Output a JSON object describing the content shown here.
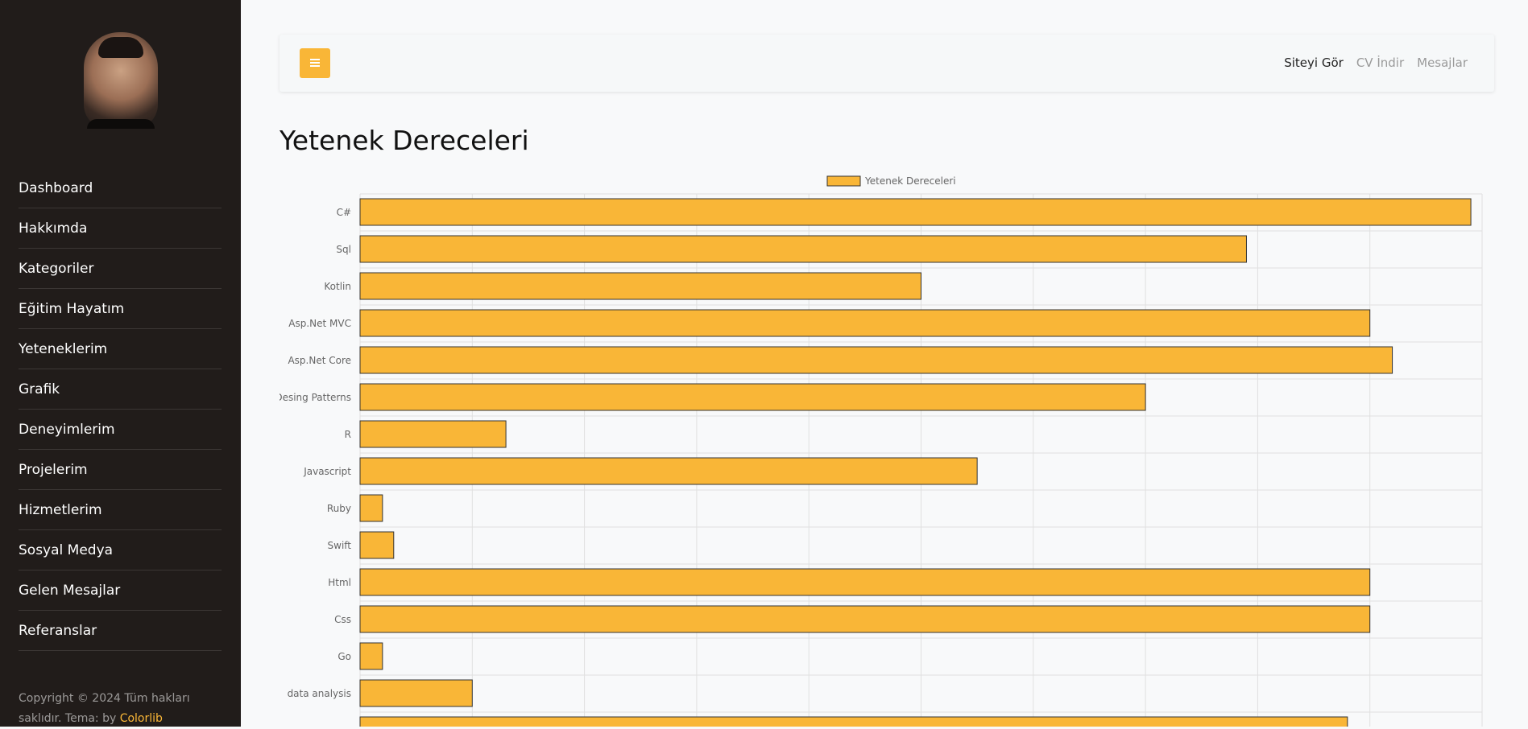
{
  "sidebar": {
    "avatar_alt": "Profil fotoğrafı",
    "items": [
      {
        "label": "Dashboard"
      },
      {
        "label": "Hakkımda"
      },
      {
        "label": "Kategoriler"
      },
      {
        "label": "Eğitim Hayatım"
      },
      {
        "label": "Yeteneklerim"
      },
      {
        "label": "Grafik"
      },
      {
        "label": "Deneyimlerim"
      },
      {
        "label": "Projelerim"
      },
      {
        "label": "Hizmetlerim"
      },
      {
        "label": "Sosyal Medya"
      },
      {
        "label": "Gelen Mesajlar"
      },
      {
        "label": "Referanslar"
      }
    ],
    "copyright_text": "Copyright © 2024 Tüm hakları saklıdır. Tema: by ",
    "copyright_link": "Colorlib"
  },
  "topbar": {
    "menu_icon": "bars-icon",
    "links": [
      {
        "label": "Siteyi Gör",
        "active": true
      },
      {
        "label": "CV İndir",
        "active": false
      },
      {
        "label": "Mesajlar",
        "active": false
      }
    ]
  },
  "page": {
    "title": "Yetenek Dereceleri"
  },
  "colors": {
    "sidebar_bg": "#211c1a",
    "accent": "#f9b637",
    "bar_fill": "#f9b637",
    "bar_border": "#333333",
    "page_bg": "#f8f9fa"
  },
  "chart_data": {
    "type": "bar",
    "orientation": "horizontal",
    "categories": [
      "C#",
      "Sql",
      "Kotlin",
      "Asp.Net MVC",
      "Asp.Net Core",
      "Desing Patterns",
      "R",
      "Javascript",
      "Ruby",
      "Swift",
      "Html",
      "Css",
      "Go",
      "data analysis",
      ""
    ],
    "series": [
      {
        "name": "Yetenek Dereceleri",
        "values": [
          99,
          79,
          50,
          90,
          92,
          70,
          13,
          55,
          2,
          3,
          90,
          90,
          2,
          10,
          88
        ]
      }
    ],
    "xlim": [
      0,
      100
    ],
    "grid": true,
    "legend": "top-center"
  }
}
